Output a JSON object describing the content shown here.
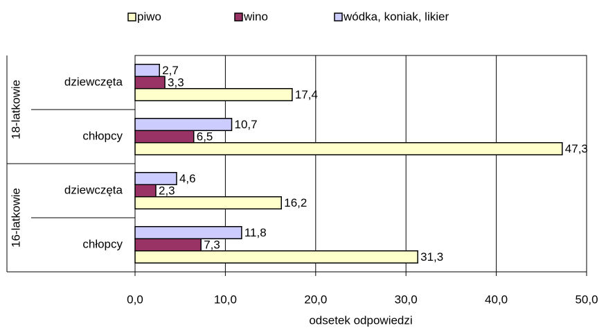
{
  "chart_data": {
    "type": "bar",
    "orientation": "horizontal",
    "xlabel": "odsetek odpowiedzi",
    "groups": [
      "18-latkowie",
      "16-latkowie"
    ],
    "categories": [
      "dziewczęta",
      "chłopcy",
      "dziewczęta",
      "chłopcy"
    ],
    "series": [
      {
        "name": "piwo",
        "color": "#ffffcc",
        "values": [
          17.4,
          47.3,
          16.2,
          31.3
        ],
        "value_labels": [
          "17,4",
          "47,3",
          "16,2",
          "31,3"
        ]
      },
      {
        "name": "wino",
        "color": "#993366",
        "values": [
          3.3,
          6.5,
          2.3,
          7.3
        ],
        "value_labels": [
          "3,3",
          "6,5",
          "2,3",
          "7,3"
        ]
      },
      {
        "name": "wódka, koniak, likier",
        "color": "#ccccff",
        "values": [
          2.7,
          10.7,
          4.6,
          11.8
        ],
        "value_labels": [
          "2,7",
          "10,7",
          "4,6",
          "11,8"
        ]
      }
    ],
    "xlim": [
      0,
      50
    ],
    "xticks": [
      {
        "value": 0,
        "label": "0,0"
      },
      {
        "value": 10,
        "label": "10,0"
      },
      {
        "value": 20,
        "label": "20,0"
      },
      {
        "value": 30,
        "label": "30,0"
      },
      {
        "value": 40,
        "label": "40,0"
      },
      {
        "value": 50,
        "label": "50,0"
      }
    ],
    "grid": true,
    "legend": "top"
  }
}
